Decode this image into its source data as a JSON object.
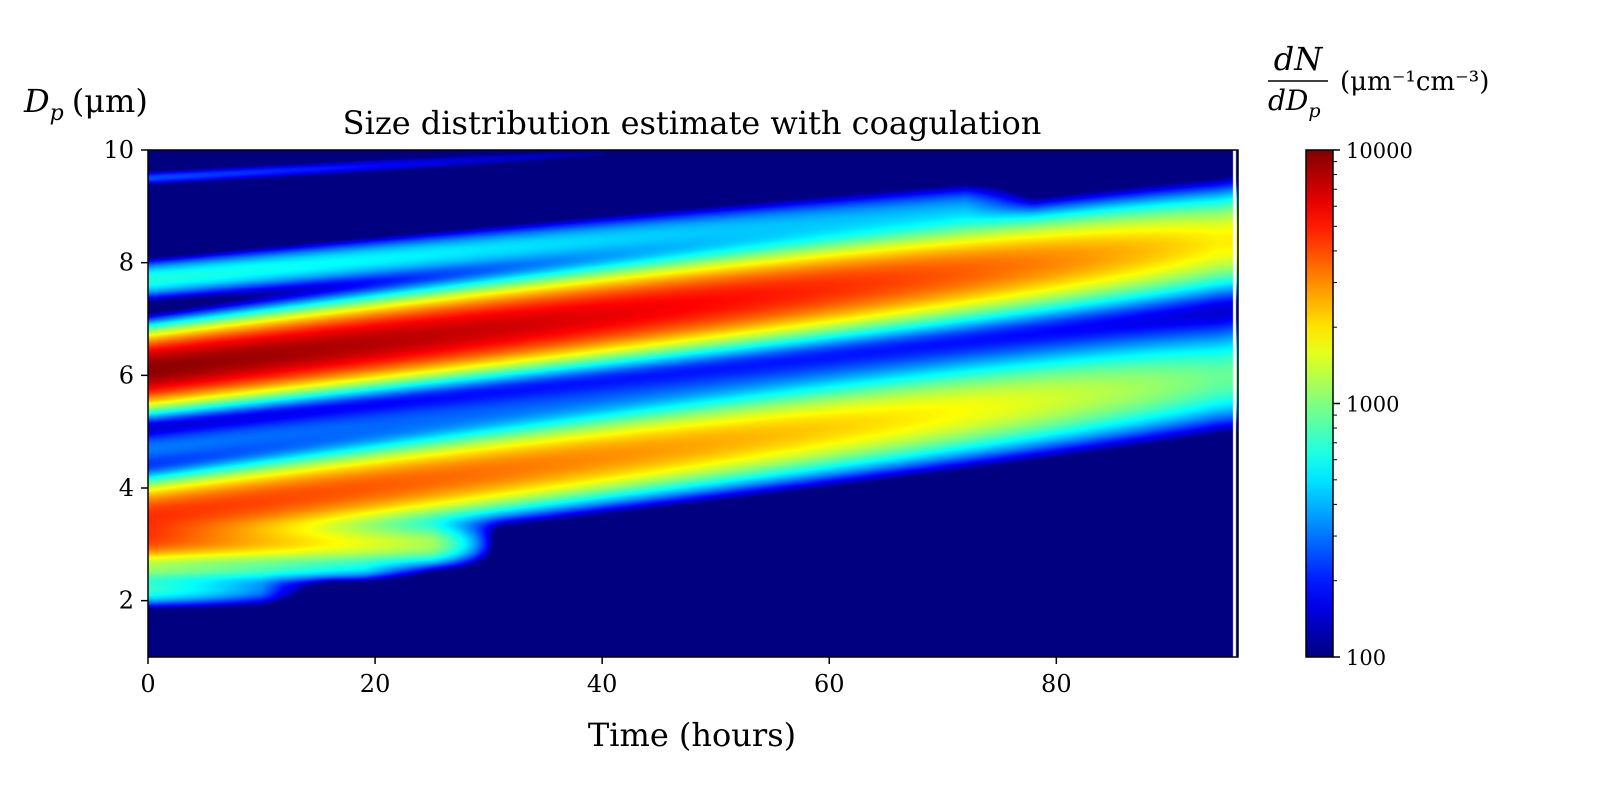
{
  "chart_data": {
    "type": "heatmap",
    "title": "Size distribution estimate with coagulation",
    "xlabel": "Time (hours)",
    "ylabel": {
      "symbol": "D",
      "subscript": "p",
      "unit": "(μm)"
    },
    "xlim": [
      0,
      96
    ],
    "ylim": [
      1,
      10
    ],
    "x_ticks": [
      0,
      20,
      40,
      60,
      80
    ],
    "y_ticks": [
      2,
      4,
      6,
      8,
      10
    ],
    "colorbar": {
      "label": {
        "numerator": "dN",
        "denominator_symbol": "dD",
        "denominator_subscript": "p",
        "unit": "(μm⁻¹cm⁻³)"
      },
      "scale": "log",
      "range": [
        100,
        10000
      ],
      "ticks": [
        100,
        1000,
        10000
      ],
      "colormap": "jet"
    },
    "bands": [
      {
        "name": "low-diameter spot",
        "y_start": 2.2,
        "slope": 0.0,
        "t_end": 10,
        "width": 0.18,
        "peak": 700
      },
      {
        "name": "2.6 um spot",
        "y_start": 2.55,
        "slope": 0.0,
        "t_end": 19,
        "width": 0.12,
        "peak": 750
      },
      {
        "name": "3 um spot",
        "y_start": 3.0,
        "slope": 0.0,
        "t_end": 25,
        "width": 0.2,
        "peak": 2600
      },
      {
        "name": "lower growing band",
        "y_start": 3.5,
        "slope": 0.026,
        "t_end": 96,
        "width": 0.33,
        "peak": 4500
      },
      {
        "name": "faint middle band",
        "y_start": 4.7,
        "slope": 0.023,
        "t_end": 96,
        "width": 0.22,
        "peak": 300
      },
      {
        "name": "main band",
        "y_start": 6.1,
        "slope": 0.024,
        "t_end": 96,
        "width": 0.33,
        "peak": 9500
      },
      {
        "name": "upper band",
        "y_start": 7.7,
        "slope": 0.018,
        "t_end": 72,
        "width": 0.2,
        "peak": 650
      },
      {
        "name": "top faint band",
        "y_start": 9.5,
        "slope": 0.011,
        "t_end": 40,
        "width": 0.09,
        "peak": 250
      }
    ]
  }
}
